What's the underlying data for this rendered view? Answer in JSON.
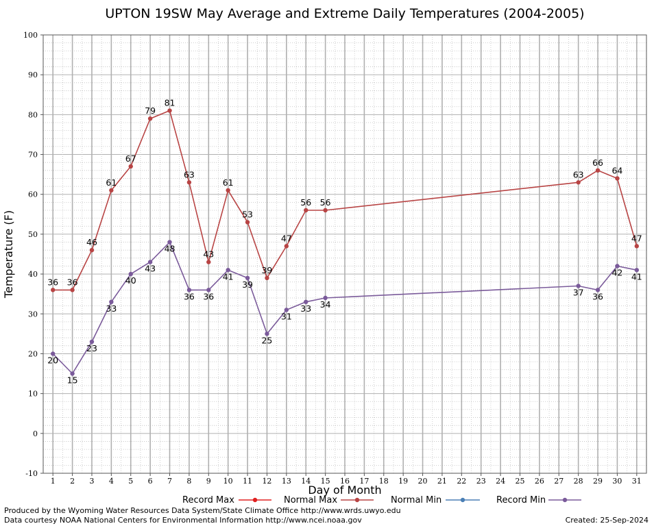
{
  "chart_data": {
    "type": "line",
    "title": "UPTON 19SW May Average and Extreme Daily Temperatures (2004-2005)",
    "xlabel": "Day of Month",
    "ylabel": "Temperature (F)",
    "xlim": [
      0.5,
      31.5
    ],
    "ylim": [
      -10,
      100
    ],
    "yticks": [
      -10,
      0,
      10,
      20,
      30,
      40,
      50,
      60,
      70,
      80,
      90,
      100
    ],
    "xticks": [
      1,
      2,
      3,
      4,
      5,
      6,
      7,
      8,
      9,
      10,
      11,
      12,
      13,
      14,
      15,
      16,
      17,
      18,
      19,
      20,
      21,
      22,
      23,
      24,
      25,
      26,
      27,
      28,
      29,
      30,
      31
    ],
    "grid": true,
    "legend_position": "bottom",
    "series": [
      {
        "name": "Record Max",
        "color": "#e02020",
        "points": []
      },
      {
        "name": "Normal Max",
        "color": "#b84444",
        "points": [
          [
            1,
            36
          ],
          [
            2,
            36
          ],
          [
            3,
            46
          ],
          [
            4,
            61
          ],
          [
            5,
            67
          ],
          [
            6,
            79
          ],
          [
            7,
            81
          ],
          [
            8,
            63
          ],
          [
            9,
            43
          ],
          [
            10,
            61
          ],
          [
            11,
            53
          ],
          [
            12,
            39
          ],
          [
            13,
            47
          ],
          [
            14,
            56
          ],
          [
            15,
            56
          ],
          [
            28,
            63
          ],
          [
            29,
            66
          ],
          [
            30,
            64
          ],
          [
            31,
            47
          ]
        ]
      },
      {
        "name": "Normal Min",
        "color": "#4a7fb5",
        "points": []
      },
      {
        "name": "Record Min",
        "color": "#7a5a9a",
        "points": [
          [
            1,
            20
          ],
          [
            2,
            15
          ],
          [
            3,
            23
          ],
          [
            4,
            33
          ],
          [
            5,
            40
          ],
          [
            6,
            43
          ],
          [
            7,
            48
          ],
          [
            8,
            36
          ],
          [
            9,
            36
          ],
          [
            10,
            41
          ],
          [
            11,
            39
          ],
          [
            12,
            25
          ],
          [
            13,
            31
          ],
          [
            14,
            33
          ],
          [
            15,
            34
          ],
          [
            28,
            37
          ],
          [
            29,
            36
          ],
          [
            30,
            42
          ],
          [
            31,
            41
          ]
        ]
      }
    ]
  },
  "footer": {
    "left_line1": "Produced by the Wyoming Water Resources Data System/State Climate Office http://www.wrds.uwyo.edu",
    "left_line2": "Data courtesy NOAA National Centers for Environmental Information http://www.ncei.noaa.gov",
    "created": "Created:  25-Sep-2024"
  }
}
